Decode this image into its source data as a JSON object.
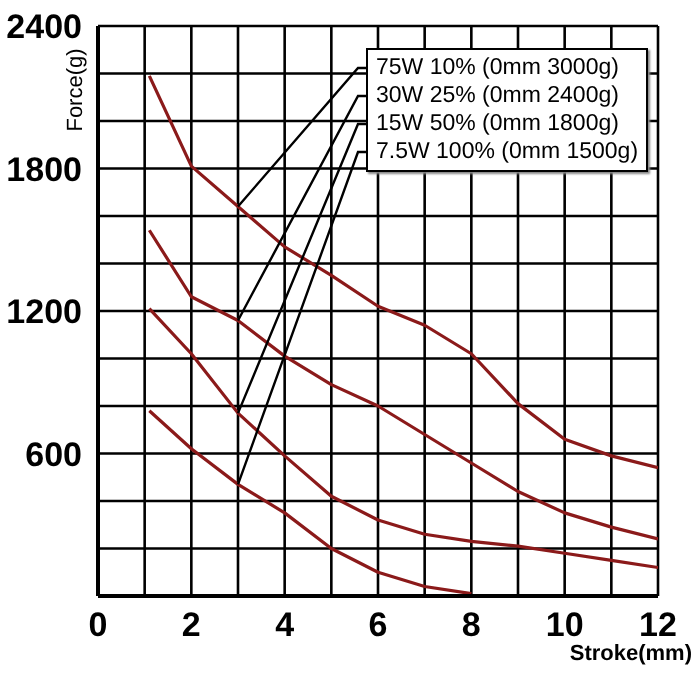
{
  "chart_data": {
    "type": "line",
    "xlabel": "Stroke(mm)",
    "ylabel": "Force(g)",
    "xlim": [
      0,
      12
    ],
    "ylim": [
      0,
      2400
    ],
    "xticks": [
      0,
      {
        "value": 1,
        "label": null
      },
      2,
      {
        "value": 3,
        "label": null
      },
      4,
      {
        "value": 5,
        "label": null
      },
      6,
      {
        "value": 7,
        "label": null
      },
      8,
      {
        "value": 9,
        "label": null
      },
      10,
      {
        "value": 11,
        "label": null
      },
      12
    ],
    "yticks": [
      {
        "value": 0,
        "label": null
      },
      {
        "value": 200,
        "label": null
      },
      {
        "value": 400,
        "label": null
      },
      600,
      {
        "value": 800,
        "label": null
      },
      {
        "value": 1000,
        "label": null
      },
      1200,
      {
        "value": 1400,
        "label": null
      },
      {
        "value": 1600,
        "label": null
      },
      1800,
      {
        "value": 2000,
        "label": null
      },
      {
        "value": 2200,
        "label": null
      },
      2400
    ],
    "grid": true,
    "legend": "top right",
    "marker": "none",
    "line_style": "solid",
    "series": [
      {
        "name": "75W 10% (0mm 3000g)",
        "color": "#8b1a1a",
        "x": [
          1.1,
          2,
          3,
          4,
          5,
          6,
          7,
          8,
          9,
          10,
          11,
          12
        ],
        "values": [
          2190,
          1810,
          1640,
          1470,
          1350,
          1220,
          1140,
          1020,
          810,
          660,
          590,
          540
        ]
      },
      {
        "name": "30W 25% (0mm 2400g)",
        "color": "#8b1a1a",
        "x": [
          1.1,
          2,
          3,
          4,
          5,
          6,
          7,
          8,
          9,
          10,
          11,
          12
        ],
        "values": [
          1540,
          1260,
          1160,
          1010,
          890,
          800,
          680,
          560,
          440,
          350,
          290,
          240
        ]
      },
      {
        "name": "15W 50% (0mm 1800g)",
        "color": "#8b1a1a",
        "x": [
          1.1,
          2,
          3,
          4,
          5,
          6,
          7,
          8,
          9,
          10,
          11,
          12
        ],
        "values": [
          1210,
          1020,
          770,
          590,
          420,
          320,
          260,
          230,
          210,
          180,
          150,
          120
        ]
      },
      {
        "name": "7.5W 100% (0mm 1500g)",
        "color": "#8b1a1a",
        "x": [
          1.1,
          2,
          3,
          4,
          5,
          6,
          7,
          8
        ],
        "values": [
          780,
          620,
          470,
          350,
          200,
          100,
          40,
          10
        ]
      }
    ]
  }
}
